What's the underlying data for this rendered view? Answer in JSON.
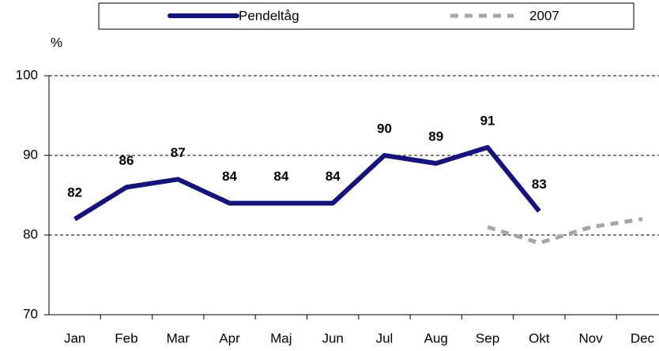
{
  "chart_data": {
    "type": "line",
    "y_label": "%",
    "categories": [
      "Jan",
      "Feb",
      "Mar",
      "Apr",
      "Maj",
      "Jun",
      "Jul",
      "Aug",
      "Sep",
      "Okt",
      "Nov",
      "Dec"
    ],
    "series": [
      {
        "name": "Pendeltåg",
        "color": "#14147a",
        "dashed": false,
        "show_labels": true,
        "values": [
          82,
          86,
          87,
          84,
          84,
          84,
          90,
          89,
          91,
          83,
          null,
          null
        ]
      },
      {
        "name": "2007",
        "color": "#a6a6a6",
        "dashed": true,
        "show_labels": false,
        "values": [
          null,
          null,
          null,
          null,
          null,
          null,
          null,
          null,
          81,
          79,
          81,
          82
        ]
      }
    ],
    "ylim": [
      70,
      100
    ],
    "yticks": [
      70,
      80,
      90,
      100
    ],
    "grid": true,
    "legend": "top"
  }
}
